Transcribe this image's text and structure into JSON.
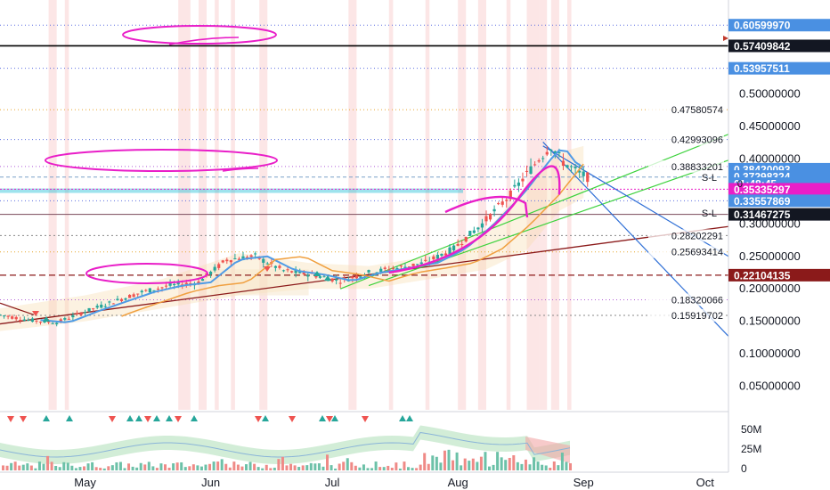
{
  "chart_data": {
    "type": "candlestick",
    "y_axis": {
      "ticks": [
        "0.50000000",
        "0.45000000",
        "0.40000000",
        "0.35000000",
        "0.30000000",
        "0.25000000",
        "0.20000000",
        "0.15000000",
        "0.10000000",
        "0.05000000"
      ],
      "tick_values": [
        0.5,
        0.45,
        0.4,
        0.35,
        0.3,
        0.25,
        0.2,
        0.15,
        0.1,
        0.05
      ],
      "range": [
        0.0,
        0.62
      ]
    },
    "x_axis": {
      "labels": [
        "May",
        "Jun",
        "Jul",
        "Aug",
        "Sep",
        "Oct"
      ],
      "label_dates": [
        "2020-05-01",
        "2020-06-01",
        "2020-07-01",
        "2020-08-01",
        "2020-09-01",
        "2020-10-01"
      ],
      "range": [
        "2020-04-10",
        "2020-10-12"
      ]
    },
    "price_tags": [
      {
        "label": "0.60599970",
        "value": 0.6059997,
        "color": "#4a90e2"
      },
      {
        "label": "0.57409842",
        "value": 0.57409842,
        "color": "#131722"
      },
      {
        "label": "0.53957511",
        "value": 0.53957511,
        "color": "#4a90e2"
      },
      {
        "label": "0.38420093",
        "value": 0.38420093,
        "color": "#4a90e2"
      },
      {
        "label": "0.37298324",
        "value": 0.37298324,
        "color": "#4a90e2"
      },
      {
        "label": "01:48:45",
        "value": 0.362,
        "color": "#4a90e2"
      },
      {
        "label": "0.35335297",
        "value": 0.35335297,
        "color": "#e91ec8"
      },
      {
        "label": "0.33557869",
        "value": 0.33557869,
        "color": "#4a90e2"
      },
      {
        "label": "0.31467275",
        "value": 0.31467275,
        "color": "#131722"
      },
      {
        "label": "0.22104135",
        "value": 0.22104135,
        "color": "#8b1a1a"
      }
    ],
    "level_labels": [
      {
        "label": "0.47580574",
        "value": 0.47580574
      },
      {
        "label": "0.42993096",
        "value": 0.42993096
      },
      {
        "label": "0.38833201",
        "value": 0.38833201
      },
      {
        "label": "0.28202291",
        "value": 0.28202291
      },
      {
        "label": "0.25693414",
        "value": 0.25693414
      },
      {
        "label": "0.18320066",
        "value": 0.18320066
      },
      {
        "label": "0.15919702",
        "value": 0.15919702
      }
    ],
    "side_labels": [
      {
        "label": "S-L",
        "value": 0.372
      },
      {
        "label": "S-L",
        "value": 0.317
      },
      {
        "label": "0",
        "value": 0.362
      }
    ],
    "volume_axis": {
      "ticks": [
        "50M",
        "25M",
        "0"
      ],
      "tick_values": [
        50,
        25,
        0
      ]
    },
    "price_series": [
      [
        "2020-04-10",
        0.16
      ],
      [
        "2020-04-17",
        0.152
      ],
      [
        "2020-04-24",
        0.148
      ],
      [
        "2020-05-01",
        0.165
      ],
      [
        "2020-05-08",
        0.18
      ],
      [
        "2020-05-15",
        0.195
      ],
      [
        "2020-05-22",
        0.205
      ],
      [
        "2020-05-29",
        0.21
      ],
      [
        "2020-06-05",
        0.245
      ],
      [
        "2020-06-12",
        0.25
      ],
      [
        "2020-06-19",
        0.228
      ],
      [
        "2020-06-26",
        0.222
      ],
      [
        "2020-07-03",
        0.212
      ],
      [
        "2020-07-10",
        0.225
      ],
      [
        "2020-07-17",
        0.232
      ],
      [
        "2020-07-24",
        0.24
      ],
      [
        "2020-07-31",
        0.262
      ],
      [
        "2020-08-07",
        0.3
      ],
      [
        "2020-08-14",
        0.345
      ],
      [
        "2020-08-21",
        0.4
      ],
      [
        "2020-08-24",
        0.42
      ],
      [
        "2020-08-27",
        0.395
      ],
      [
        "2020-08-31",
        0.378
      ],
      [
        "2020-09-02",
        0.372
      ]
    ],
    "colors": {
      "up": "#26a69a",
      "down": "#ef5350",
      "magenta": "#e91ec8",
      "green_line": "#3cd23c",
      "blue_line": "#2f6fd6",
      "brown_line": "#8b1a1a",
      "dotted_blue": "#5b6ee1",
      "dotted_purple": "#b05bd6"
    }
  }
}
